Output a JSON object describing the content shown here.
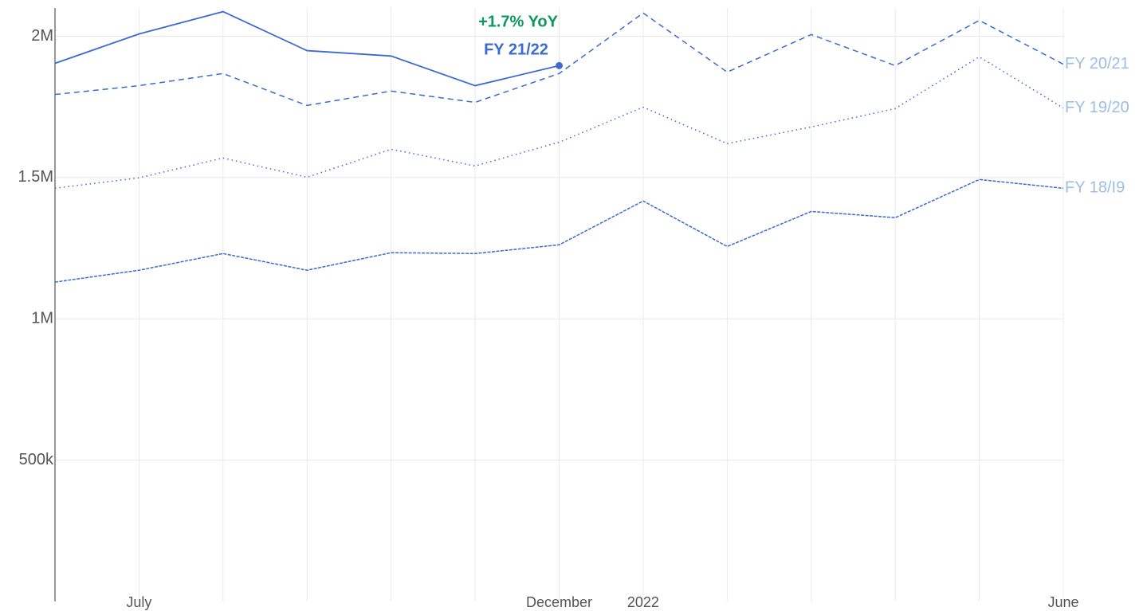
{
  "chart_data": {
    "type": "line",
    "categories": [
      null,
      "July",
      null,
      null,
      null,
      null,
      "December",
      "2022",
      null,
      null,
      null,
      null,
      "June"
    ],
    "ylim": [
      0,
      2100000
    ],
    "yticks": [
      {
        "value": 500000,
        "label": "500k"
      },
      {
        "value": 1000000,
        "label": "1M"
      },
      {
        "value": 1500000,
        "label": "1.5M"
      },
      {
        "value": 2000000,
        "label": "2M"
      }
    ],
    "grid": true,
    "annotation": "+1.7% YoY",
    "series": [
      {
        "name": "FY 21/22",
        "color": "#3b6bd0",
        "dash": "solid",
        "values": [
          1904000,
          2008000,
          2087000,
          1949000,
          1930000,
          1825000,
          1896000,
          null,
          null,
          null,
          null,
          null,
          null
        ]
      },
      {
        "name": "FY 20/21",
        "color": "#3b6bd0",
        "dash": "dashed",
        "values": [
          1794000,
          1825000,
          1868000,
          1755000,
          1806000,
          1766000,
          1868000,
          2082000,
          1873000,
          2006000,
          1896000,
          2056000,
          1901000
        ]
      },
      {
        "name": "FY 19/20",
        "color": "#3b6bd0",
        "dash": "dotted",
        "values": [
          1462000,
          1499000,
          1569000,
          1501000,
          1600000,
          1541000,
          1625000,
          1749000,
          1620000,
          1679000,
          1744000,
          1927000,
          1746000
        ]
      },
      {
        "name": "FY 18/I9",
        "color": "#3b6bd0",
        "dash": "densely-dashed",
        "values": [
          1130000,
          1172000,
          1231000,
          1172000,
          1234000,
          1231000,
          1262000,
          1417000,
          1256000,
          1380000,
          1358000,
          1493000,
          1462000
        ]
      }
    ]
  }
}
